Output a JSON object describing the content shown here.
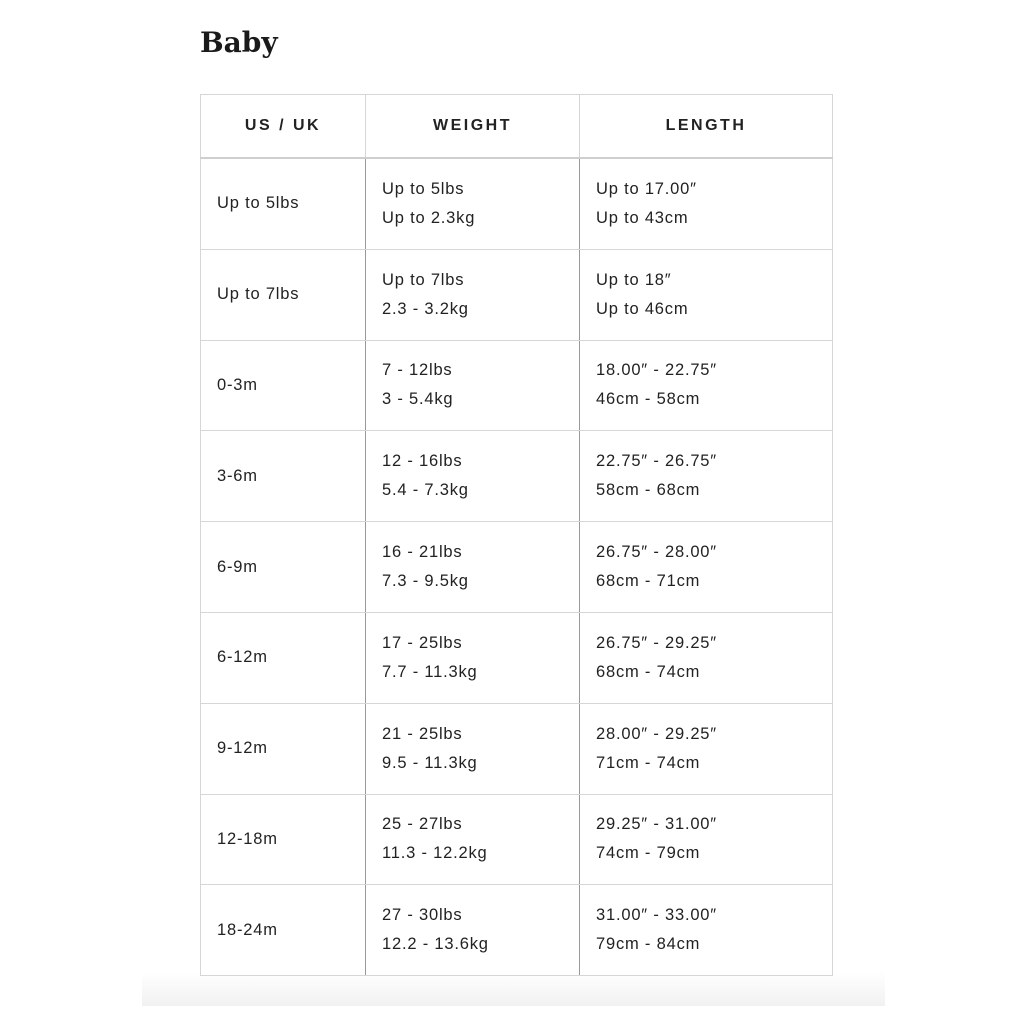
{
  "title": "Baby",
  "table": {
    "headers": [
      "US / UK",
      "WEIGHT",
      "LENGTH"
    ],
    "rows": [
      {
        "size": "Up to 5lbs",
        "weight": [
          "Up to 5lbs",
          "Up to 2.3kg"
        ],
        "length": [
          "Up to 17.00″",
          "Up to 43cm"
        ]
      },
      {
        "size": "Up to 7lbs",
        "weight": [
          "Up to 7lbs",
          "2.3 - 3.2kg"
        ],
        "length": [
          "Up to 18″",
          "Up to 46cm"
        ]
      },
      {
        "size": "0-3m",
        "weight": [
          "7 - 12lbs",
          "3 - 5.4kg"
        ],
        "length": [
          "18.00″ - 22.75″",
          "46cm - 58cm"
        ]
      },
      {
        "size": "3-6m",
        "weight": [
          "12 - 16lbs",
          "5.4 - 7.3kg"
        ],
        "length": [
          "22.75″ - 26.75″",
          "58cm - 68cm"
        ]
      },
      {
        "size": "6-9m",
        "weight": [
          "16 - 21lbs",
          "7.3 - 9.5kg"
        ],
        "length": [
          "26.75″ - 28.00″",
          "68cm - 71cm"
        ]
      },
      {
        "size": "6-12m",
        "weight": [
          "17 - 25lbs",
          "7.7 - 11.3kg"
        ],
        "length": [
          "26.75″ - 29.25″",
          "68cm - 74cm"
        ]
      },
      {
        "size": "9-12m",
        "weight": [
          "21 - 25lbs",
          "9.5 - 11.3kg"
        ],
        "length": [
          "28.00″ - 29.25″",
          "71cm - 74cm"
        ]
      },
      {
        "size": "12-18m",
        "weight": [
          "25 - 27lbs",
          "11.3 - 12.2kg"
        ],
        "length": [
          "29.25″ - 31.00″",
          "74cm - 79cm"
        ]
      },
      {
        "size": "18-24m",
        "weight": [
          "27 - 30lbs",
          "12.2 - 13.6kg"
        ],
        "length": [
          "31.00″ - 33.00″",
          "79cm - 84cm"
        ]
      }
    ]
  }
}
